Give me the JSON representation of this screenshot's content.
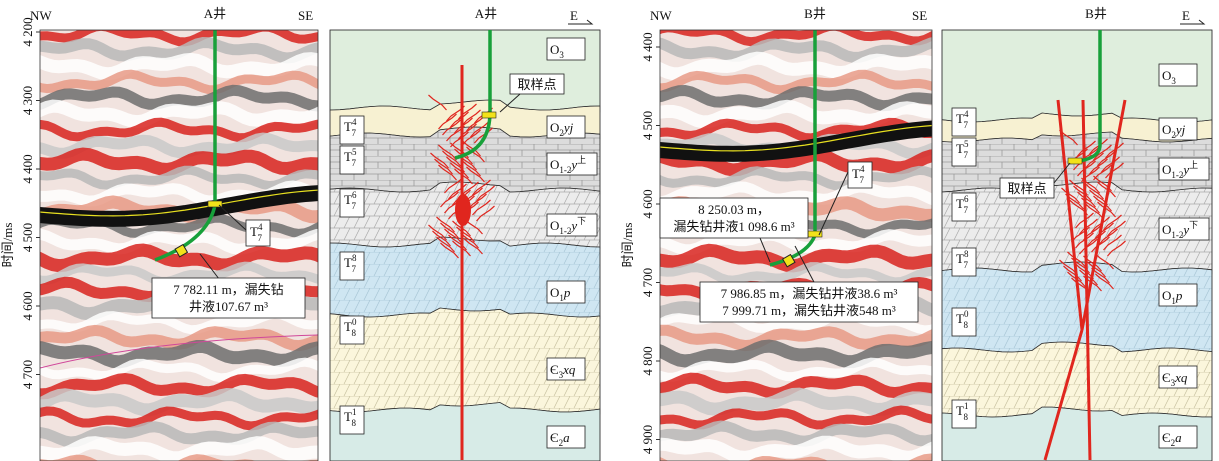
{
  "panels": [
    {
      "type": "seismic",
      "left": "NW",
      "well": "A井",
      "right": "SE",
      "axis_label": "时间/ms",
      "ticks": [
        "4 200",
        "4 300",
        "4 400",
        "4 500",
        "4 600",
        "4 700"
      ],
      "horizon": {
        "base": "T",
        "sup": "4",
        "sub": "7"
      },
      "annotations": [
        [
          "7 782.11 m，漏失钻",
          "井液107.67 m³"
        ]
      ]
    },
    {
      "type": "geology",
      "well": "A井",
      "direction": "E",
      "sample": "取样点",
      "layers": [
        {
          "base": "O",
          "sub": "3"
        },
        {
          "base": "O",
          "sub": "2",
          "rest": "yj"
        },
        {
          "base": "O",
          "sub": "1-2",
          "rest": "y",
          "sup": "上"
        },
        {
          "base": "O",
          "sub": "1-2",
          "rest": "y",
          "sup": "下"
        },
        {
          "base": "O",
          "sub": "1",
          "rest": "p"
        },
        {
          "base": "Є",
          "sub": "3",
          "rest": "xq"
        },
        {
          "base": "Є",
          "sub": "2",
          "rest": "a"
        }
      ],
      "horizons": [
        {
          "base": "T",
          "sup": "4",
          "sub": "7"
        },
        {
          "base": "T",
          "sup": "5",
          "sub": "7"
        },
        {
          "base": "T",
          "sup": "6",
          "sub": "7"
        },
        {
          "base": "T",
          "sup": "8",
          "sub": "7"
        },
        {
          "base": "T",
          "sup": "0",
          "sub": "8"
        },
        {
          "base": "T",
          "sup": "1",
          "sub": "8"
        }
      ]
    },
    {
      "type": "seismic",
      "left": "NW",
      "well": "B井",
      "right": "SE",
      "axis_label": "时间/ms",
      "ticks": [
        "4 400",
        "4 500",
        "4 600",
        "4 700",
        "4 800",
        "4 900"
      ],
      "horizon": {
        "base": "T",
        "sup": "4",
        "sub": "7"
      },
      "annotations": [
        [
          "8 250.03 m，",
          "漏失钻井液1 098.6 m³"
        ],
        [
          "7 986.85 m，漏失钻井液38.6 m³",
          "7 999.71 m，漏失钻井液548 m³"
        ]
      ]
    },
    {
      "type": "geology",
      "well": "B井",
      "direction": "E",
      "sample": "取样点",
      "layers": [
        {
          "base": "O",
          "sub": "3"
        },
        {
          "base": "O",
          "sub": "2",
          "rest": "yj"
        },
        {
          "base": "O",
          "sub": "1-2",
          "rest": "y",
          "sup": "上"
        },
        {
          "base": "O",
          "sub": "1-2",
          "rest": "y",
          "sup": "下"
        },
        {
          "base": "O",
          "sub": "1",
          "rest": "p"
        },
        {
          "base": "Є",
          "sub": "3",
          "rest": "xq"
        },
        {
          "base": "Є",
          "sub": "2",
          "rest": "a"
        }
      ],
      "horizons": [
        {
          "base": "T",
          "sup": "4",
          "sub": "7"
        },
        {
          "base": "T",
          "sup": "5",
          "sub": "7"
        },
        {
          "base": "T",
          "sup": "6",
          "sub": "7"
        },
        {
          "base": "T",
          "sup": "8",
          "sub": "7"
        },
        {
          "base": "T",
          "sup": "0",
          "sub": "8"
        },
        {
          "base": "T",
          "sup": "1",
          "sub": "8"
        }
      ]
    }
  ]
}
